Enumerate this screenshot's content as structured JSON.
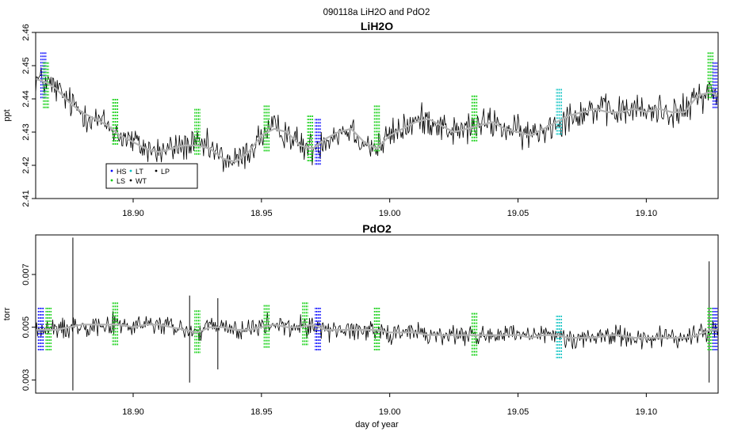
{
  "figure": {
    "title": "090118a   LiH2O and PdO2"
  },
  "chart_data": [
    {
      "type": "line",
      "title": "LiH2O",
      "xlabel": "",
      "ylabel": "ppt",
      "xlim": [
        18.862,
        19.128
      ],
      "ylim": [
        2.41,
        2.46
      ],
      "xticks": [
        18.9,
        18.95,
        19.0,
        19.05,
        19.1
      ],
      "xtick_labels": [
        "18.90",
        "18.95",
        "19.00",
        "19.05",
        "19.10"
      ],
      "yticks": [
        2.41,
        2.42,
        2.43,
        2.44,
        2.45,
        2.46
      ],
      "ytick_labels": [
        "2.41",
        "2.42",
        "2.43",
        "2.44",
        "2.45",
        "2.46"
      ],
      "grid": false,
      "legend_position": "bottom-left",
      "legend": [
        {
          "label": "HS",
          "color": "#0000ff"
        },
        {
          "label": "LT",
          "color": "#00c0c0"
        },
        {
          "label": "LP",
          "color": "#000000"
        },
        {
          "label": "LS",
          "color": "#00cc00"
        },
        {
          "label": "WT",
          "color": "#000000"
        }
      ],
      "smooth_x": [
        18.862,
        18.866,
        18.87,
        18.875,
        18.88,
        18.885,
        18.89,
        18.895,
        18.9,
        18.905,
        18.91,
        18.915,
        18.92,
        18.925,
        18.93,
        18.935,
        18.94,
        18.945,
        18.95,
        18.955,
        18.96,
        18.965,
        18.97,
        18.975,
        18.98,
        18.985,
        18.99,
        18.995,
        19.0,
        19.005,
        19.01,
        19.015,
        19.02,
        19.025,
        19.03,
        19.035,
        19.04,
        19.045,
        19.05,
        19.055,
        19.06,
        19.065,
        19.07,
        19.075,
        19.08,
        19.085,
        19.09,
        19.095,
        19.1,
        19.105,
        19.11,
        19.115,
        19.12,
        19.125,
        19.128
      ],
      "smooth_y": [
        2.446,
        2.445,
        2.443,
        2.439,
        2.436,
        2.434,
        2.432,
        2.429,
        2.427,
        2.425,
        2.424,
        2.425,
        2.426,
        2.426,
        2.425,
        2.422,
        2.421,
        2.424,
        2.429,
        2.431,
        2.43,
        2.426,
        2.425,
        2.428,
        2.43,
        2.431,
        2.427,
        2.425,
        2.429,
        2.431,
        2.433,
        2.434,
        2.432,
        2.43,
        2.431,
        2.432,
        2.433,
        2.431,
        2.43,
        2.429,
        2.431,
        2.433,
        2.435,
        2.436,
        2.437,
        2.436,
        2.436,
        2.437,
        2.436,
        2.437,
        2.436,
        2.436,
        2.441,
        2.442,
        2.441
      ],
      "noise_amplitude": 0.007,
      "calibrations": [
        {
          "x": 18.865,
          "y": 2.447,
          "color": "#0000ff"
        },
        {
          "x": 18.866,
          "y": 2.444,
          "color": "#00cc00"
        },
        {
          "x": 18.893,
          "y": 2.433,
          "color": "#00cc00"
        },
        {
          "x": 18.925,
          "y": 2.43,
          "color": "#00cc00"
        },
        {
          "x": 18.952,
          "y": 2.431,
          "color": "#00cc00"
        },
        {
          "x": 18.969,
          "y": 2.428,
          "color": "#00cc00"
        },
        {
          "x": 18.972,
          "y": 2.427,
          "color": "#0000ff"
        },
        {
          "x": 18.995,
          "y": 2.431,
          "color": "#00cc00"
        },
        {
          "x": 19.033,
          "y": 2.434,
          "color": "#00cc00"
        },
        {
          "x": 19.066,
          "y": 2.436,
          "color": "#00c0c0"
        },
        {
          "x": 19.125,
          "y": 2.447,
          "color": "#00cc00"
        },
        {
          "x": 19.127,
          "y": 2.444,
          "color": "#0000ff"
        }
      ]
    },
    {
      "type": "line",
      "title": "PdO2",
      "xlabel": "day of year",
      "ylabel": "torr",
      "xlim": [
        18.862,
        19.128
      ],
      "ylim": [
        0.0025,
        0.0085
      ],
      "xticks": [
        18.9,
        18.95,
        19.0,
        19.05,
        19.1
      ],
      "xtick_labels": [
        "18.90",
        "18.95",
        "19.00",
        "19.05",
        "19.10"
      ],
      "yticks": [
        0.003,
        0.005,
        0.007
      ],
      "ytick_labels": [
        "0.003",
        "0.005",
        "0.007"
      ],
      "grid": false,
      "smooth_x": [
        18.862,
        18.866,
        18.87,
        18.875,
        18.88,
        18.885,
        18.89,
        18.895,
        18.9,
        18.905,
        18.91,
        18.915,
        18.92,
        18.925,
        18.93,
        18.935,
        18.94,
        18.945,
        18.95,
        18.955,
        18.96,
        18.965,
        18.97,
        18.975,
        18.98,
        18.985,
        18.99,
        18.995,
        19.0,
        19.005,
        19.01,
        19.015,
        19.02,
        19.025,
        19.03,
        19.035,
        19.04,
        19.045,
        19.05,
        19.055,
        19.06,
        19.065,
        19.07,
        19.075,
        19.08,
        19.085,
        19.09,
        19.095,
        19.1,
        19.105,
        19.11,
        19.115,
        19.12,
        19.125,
        19.128
      ],
      "smooth_y": [
        0.0049,
        0.0049,
        0.0049,
        0.005,
        0.0051,
        0.0051,
        0.0051,
        0.0051,
        0.005,
        0.0051,
        0.0051,
        0.005,
        0.0049,
        0.0048,
        0.005,
        0.005,
        0.0049,
        0.0049,
        0.005,
        0.0051,
        0.005,
        0.005,
        0.0051,
        0.0049,
        0.0049,
        0.0049,
        0.0049,
        0.0049,
        0.0048,
        0.0048,
        0.0048,
        0.0047,
        0.0047,
        0.0047,
        0.0047,
        0.0047,
        0.0047,
        0.0047,
        0.0047,
        0.0046,
        0.0047,
        0.0047,
        0.0046,
        0.0046,
        0.0046,
        0.0047,
        0.0047,
        0.0046,
        0.0046,
        0.0046,
        0.0046,
        0.0046,
        0.0047,
        0.0049,
        0.0049
      ],
      "noise_amplitude": 0.0006,
      "spikes": [
        {
          "x": 18.8765,
          "low": 0.0026,
          "high": 0.0084
        },
        {
          "x": 18.922,
          "low": 0.0029,
          "high": 0.0062
        },
        {
          "x": 18.933,
          "low": 0.0034,
          "high": 0.0061
        },
        {
          "x": 19.1245,
          "low": 0.0029,
          "high": 0.0075
        }
      ],
      "calibrations": [
        {
          "x": 18.864,
          "y": 0.0049,
          "color": "#0000ff"
        },
        {
          "x": 18.867,
          "y": 0.0049,
          "color": "#00cc00"
        },
        {
          "x": 18.893,
          "y": 0.0051,
          "color": "#00cc00"
        },
        {
          "x": 18.925,
          "y": 0.0048,
          "color": "#00cc00"
        },
        {
          "x": 18.952,
          "y": 0.005,
          "color": "#00cc00"
        },
        {
          "x": 18.967,
          "y": 0.0051,
          "color": "#00cc00"
        },
        {
          "x": 18.972,
          "y": 0.0049,
          "color": "#0000ff"
        },
        {
          "x": 18.995,
          "y": 0.0049,
          "color": "#00cc00"
        },
        {
          "x": 19.033,
          "y": 0.0047,
          "color": "#00cc00"
        },
        {
          "x": 19.066,
          "y": 0.0046,
          "color": "#00c0c0"
        },
        {
          "x": 19.125,
          "y": 0.0049,
          "color": "#00cc00"
        },
        {
          "x": 19.127,
          "y": 0.0049,
          "color": "#0000ff"
        }
      ]
    }
  ]
}
